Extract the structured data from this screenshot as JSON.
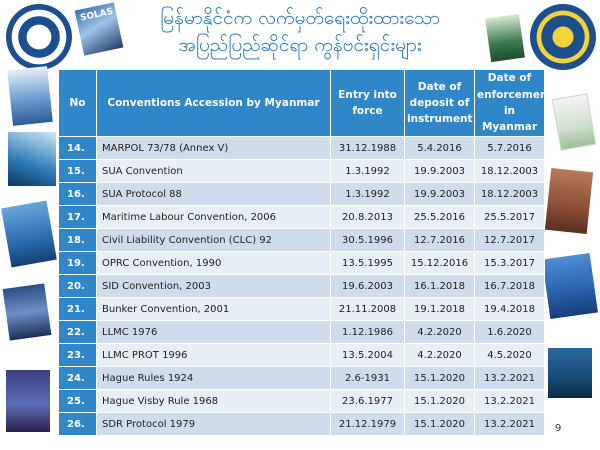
{
  "title": {
    "line1": "မြန်မာနိုင်ငံက လက်မှတ်ရေးထိုးထားသော",
    "line2": "အပြည်ပြည်ဆိုင်ရာ ကွန်ဗင်းရှင်းများ"
  },
  "logos": {
    "left": "maritime-administration-logo",
    "right": "ministry-logo"
  },
  "thumbnails": {
    "solas_label": "SOLAS"
  },
  "table": {
    "headers": {
      "no": "No",
      "name": "Conventions Accession by Myanmar",
      "entry": "Entry into force",
      "deposit": "Date of deposit of instrument",
      "enforcement": "Date of enforcement in Myanmar"
    },
    "rows": [
      {
        "no": "14.",
        "name": "MARPOL 73/78 (Annex V)",
        "entry": "31.12.1988",
        "deposit": "5.4.2016",
        "enforcement": "5.7.2016"
      },
      {
        "no": "15.",
        "name": "SUA Convention",
        "entry": "1.3.1992",
        "deposit": "19.9.2003",
        "enforcement": "18.12.2003"
      },
      {
        "no": "16.",
        "name": "SUA Protocol 88",
        "entry": "1.3.1992",
        "deposit": "19.9.2003",
        "enforcement": "18.12.2003"
      },
      {
        "no": "17.",
        "name": "Maritime Labour Convention, 2006",
        "entry": "20.8.2013",
        "deposit": "25.5.2016",
        "enforcement": "25.5.2017"
      },
      {
        "no": "18.",
        "name": "Civil Liability Convention (CLC) 92",
        "entry": "30.5.1996",
        "deposit": "12.7.2016",
        "enforcement": "12.7.2017"
      },
      {
        "no": "19.",
        "name": "OPRC Convention, 1990",
        "entry": "13.5.1995",
        "deposit": "15.12.2016",
        "enforcement": "15.3.2017"
      },
      {
        "no": "20.",
        "name": "SID Convention, 2003",
        "entry": "19.6.2003",
        "deposit": "16.1.2018",
        "enforcement": "16.7.2018"
      },
      {
        "no": "21.",
        "name": "Bunker Convention, 2001",
        "entry": "21.11.2008",
        "deposit": "19.1.2018",
        "enforcement": "19.4.2018"
      },
      {
        "no": "22.",
        "name": "LLMC 1976",
        "entry": "1.12.1986",
        "deposit": "4.2.2020",
        "enforcement": "1.6.2020"
      },
      {
        "no": "23.",
        "name": "LLMC PROT 1996",
        "entry": "13.5.2004",
        "deposit": "4.2.2020",
        "enforcement": "4.5.2020"
      },
      {
        "no": "24.",
        "name": "Hague Rules 1924",
        "entry": "2.6-1931",
        "deposit": "15.1.2020",
        "enforcement": "13.2.2021"
      },
      {
        "no": "25.",
        "name": "Hague Visby Rule 1968",
        "entry": "23.6.1977",
        "deposit": "15.1.2020",
        "enforcement": "13.2.2021"
      },
      {
        "no": "26.",
        "name": "SDR Protocol 1979",
        "entry": "21.12.1979",
        "deposit": "15.1.2020",
        "enforcement": "13.2.2021"
      }
    ]
  },
  "page_number": "9"
}
